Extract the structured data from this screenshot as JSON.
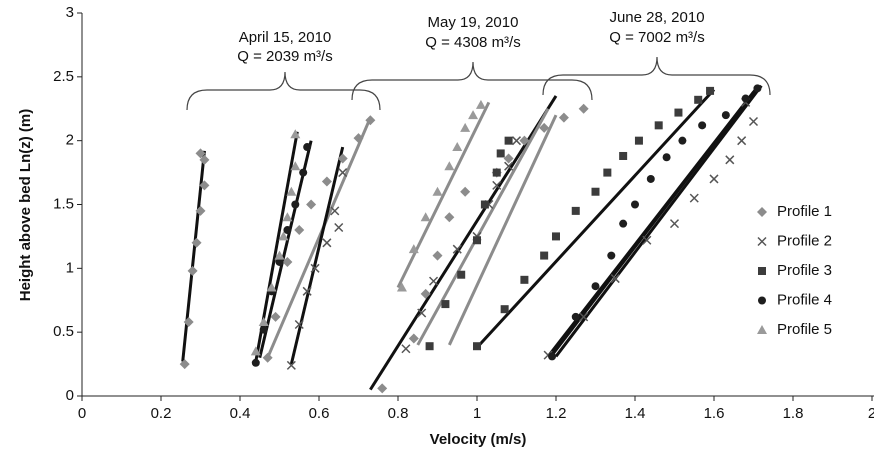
{
  "chart_data": {
    "type": "scatter",
    "xlabel": "Velocity (m/s)",
    "ylabel": "Height above bed Ln(z) (m)",
    "xlim": [
      0,
      2
    ],
    "xticks": [
      0,
      0.2,
      0.4,
      0.6,
      0.8,
      1,
      1.2,
      1.4,
      1.6,
      1.8,
      2
    ],
    "ylim": [
      0,
      3
    ],
    "yticks": [
      0,
      0.5,
      1,
      1.5,
      2,
      2.5,
      3
    ],
    "grid": false,
    "legend": "right",
    "annotations": [
      {
        "date": "April 15, 2010",
        "discharge": "Q = 2039 m³/s"
      },
      {
        "date": "May 19, 2010",
        "discharge": "Q = 4308 m³/s"
      },
      {
        "date": "June 28, 2010",
        "discharge": "Q = 7002 m³/s"
      }
    ],
    "series": [
      {
        "name": "Profile 1",
        "color": "#8c8c8c",
        "marker": "diamond",
        "x": [
          0.26,
          0.27,
          0.28,
          0.29,
          0.3,
          0.31,
          0.31,
          0.3,
          0.47,
          0.49,
          0.52,
          0.55,
          0.58,
          0.62,
          0.66,
          0.7,
          0.73,
          0.76,
          0.84,
          0.87,
          0.9,
          0.93,
          0.97,
          1.05,
          1.08,
          1.12,
          1.17,
          1.22,
          1.27
        ],
        "values": [
          0.25,
          0.58,
          0.98,
          1.2,
          1.45,
          1.65,
          1.85,
          1.9,
          0.3,
          0.62,
          1.05,
          1.3,
          1.5,
          1.68,
          1.86,
          2.02,
          2.16,
          0.06,
          0.45,
          0.8,
          1.1,
          1.4,
          1.6,
          1.75,
          1.86,
          2.0,
          2.1,
          2.18,
          2.25
        ]
      },
      {
        "name": "Profile 2",
        "color": "#555555",
        "marker": "x",
        "x": [
          0.53,
          0.55,
          0.57,
          0.59,
          0.62,
          0.65,
          0.64,
          0.66,
          0.82,
          0.86,
          0.89,
          0.95,
          1.0,
          1.03,
          1.05,
          1.08,
          1.1,
          1.18,
          1.27,
          1.35,
          1.43,
          1.5,
          1.55,
          1.6,
          1.64,
          1.67,
          1.7,
          1.68
        ],
        "values": [
          0.24,
          0.56,
          0.82,
          1.0,
          1.2,
          1.32,
          1.45,
          1.75,
          0.37,
          0.65,
          0.9,
          1.15,
          1.25,
          1.5,
          1.65,
          1.8,
          2.0,
          0.32,
          0.62,
          0.92,
          1.22,
          1.35,
          1.55,
          1.7,
          1.85,
          2.0,
          2.15,
          2.3
        ]
      },
      {
        "name": "Profile 3",
        "color": "#3c3c3c",
        "marker": "square",
        "x": [
          0.88,
          0.92,
          0.96,
          1.0,
          1.02,
          1.05,
          1.06,
          1.08,
          1.0,
          1.07,
          1.12,
          1.17,
          1.2,
          1.25,
          1.3,
          1.33,
          1.37,
          1.41,
          1.46,
          1.51,
          1.56,
          1.59
        ],
        "values": [
          0.39,
          0.72,
          0.95,
          1.22,
          1.5,
          1.75,
          1.9,
          2.0,
          0.39,
          0.68,
          0.91,
          1.1,
          1.25,
          1.45,
          1.6,
          1.75,
          1.88,
          2.0,
          2.12,
          2.22,
          2.32,
          2.39
        ]
      },
      {
        "name": "Profile 4",
        "color": "#1e1e1e",
        "marker": "circle",
        "x": [
          0.44,
          0.46,
          0.48,
          0.5,
          0.52,
          0.54,
          0.56,
          0.57,
          1.19,
          1.25,
          1.3,
          1.34,
          1.37,
          1.4,
          1.44,
          1.48,
          1.52,
          1.57,
          1.63,
          1.68,
          1.71
        ],
        "values": [
          0.26,
          0.52,
          0.82,
          1.05,
          1.3,
          1.5,
          1.75,
          1.95,
          0.31,
          0.62,
          0.86,
          1.1,
          1.35,
          1.5,
          1.7,
          1.87,
          2.0,
          2.12,
          2.2,
          2.33,
          2.41
        ]
      },
      {
        "name": "Profile 5",
        "color": "#9a9a9a",
        "marker": "triangle",
        "x": [
          0.44,
          0.46,
          0.48,
          0.5,
          0.51,
          0.52,
          0.53,
          0.54,
          0.54,
          0.81,
          0.84,
          0.87,
          0.9,
          0.93,
          0.95,
          0.97,
          0.99,
          1.01
        ],
        "values": [
          0.35,
          0.58,
          0.85,
          1.1,
          1.25,
          1.4,
          1.6,
          1.8,
          2.05,
          0.85,
          1.15,
          1.4,
          1.6,
          1.8,
          1.95,
          2.1,
          2.2,
          2.28
        ]
      }
    ],
    "fit_lines": [
      {
        "color": "#111111",
        "x": [
          0.255,
          0.31
        ],
        "values": [
          0.27,
          1.92
        ]
      },
      {
        "color": "#111111",
        "x": [
          0.44,
          0.545
        ],
        "values": [
          0.27,
          2.07
        ]
      },
      {
        "color": "#111111",
        "x": [
          0.45,
          0.58
        ],
        "values": [
          0.3,
          2.0
        ]
      },
      {
        "color": "#8c8c8c",
        "x": [
          0.47,
          0.73
        ],
        "values": [
          0.3,
          2.18
        ]
      },
      {
        "color": "#111111",
        "x": [
          0.53,
          0.66
        ],
        "values": [
          0.25,
          1.95
        ]
      },
      {
        "color": "#8c8c8c",
        "x": [
          0.8,
          1.03
        ],
        "values": [
          0.85,
          2.3
        ]
      },
      {
        "color": "#111111",
        "x": [
          0.73,
          1.2
        ],
        "values": [
          0.05,
          2.35
        ]
      },
      {
        "color": "#8c8c8c",
        "x": [
          0.85,
          1.18
        ],
        "values": [
          0.4,
          2.25
        ]
      },
      {
        "color": "#8c8c8c",
        "x": [
          0.93,
          1.2
        ],
        "values": [
          0.4,
          2.2
        ]
      },
      {
        "color": "#111111",
        "x": [
          1.0,
          1.6
        ],
        "values": [
          0.38,
          2.4
        ]
      },
      {
        "color": "#111111",
        "x": [
          1.18,
          1.71
        ],
        "values": [
          0.31,
          2.42
        ]
      },
      {
        "color": "#111111",
        "x": [
          1.19,
          1.7
        ],
        "values": [
          0.32,
          2.38
        ]
      },
      {
        "color": "#111111",
        "x": [
          1.2,
          1.72
        ],
        "values": [
          0.31,
          2.43
        ]
      }
    ]
  }
}
